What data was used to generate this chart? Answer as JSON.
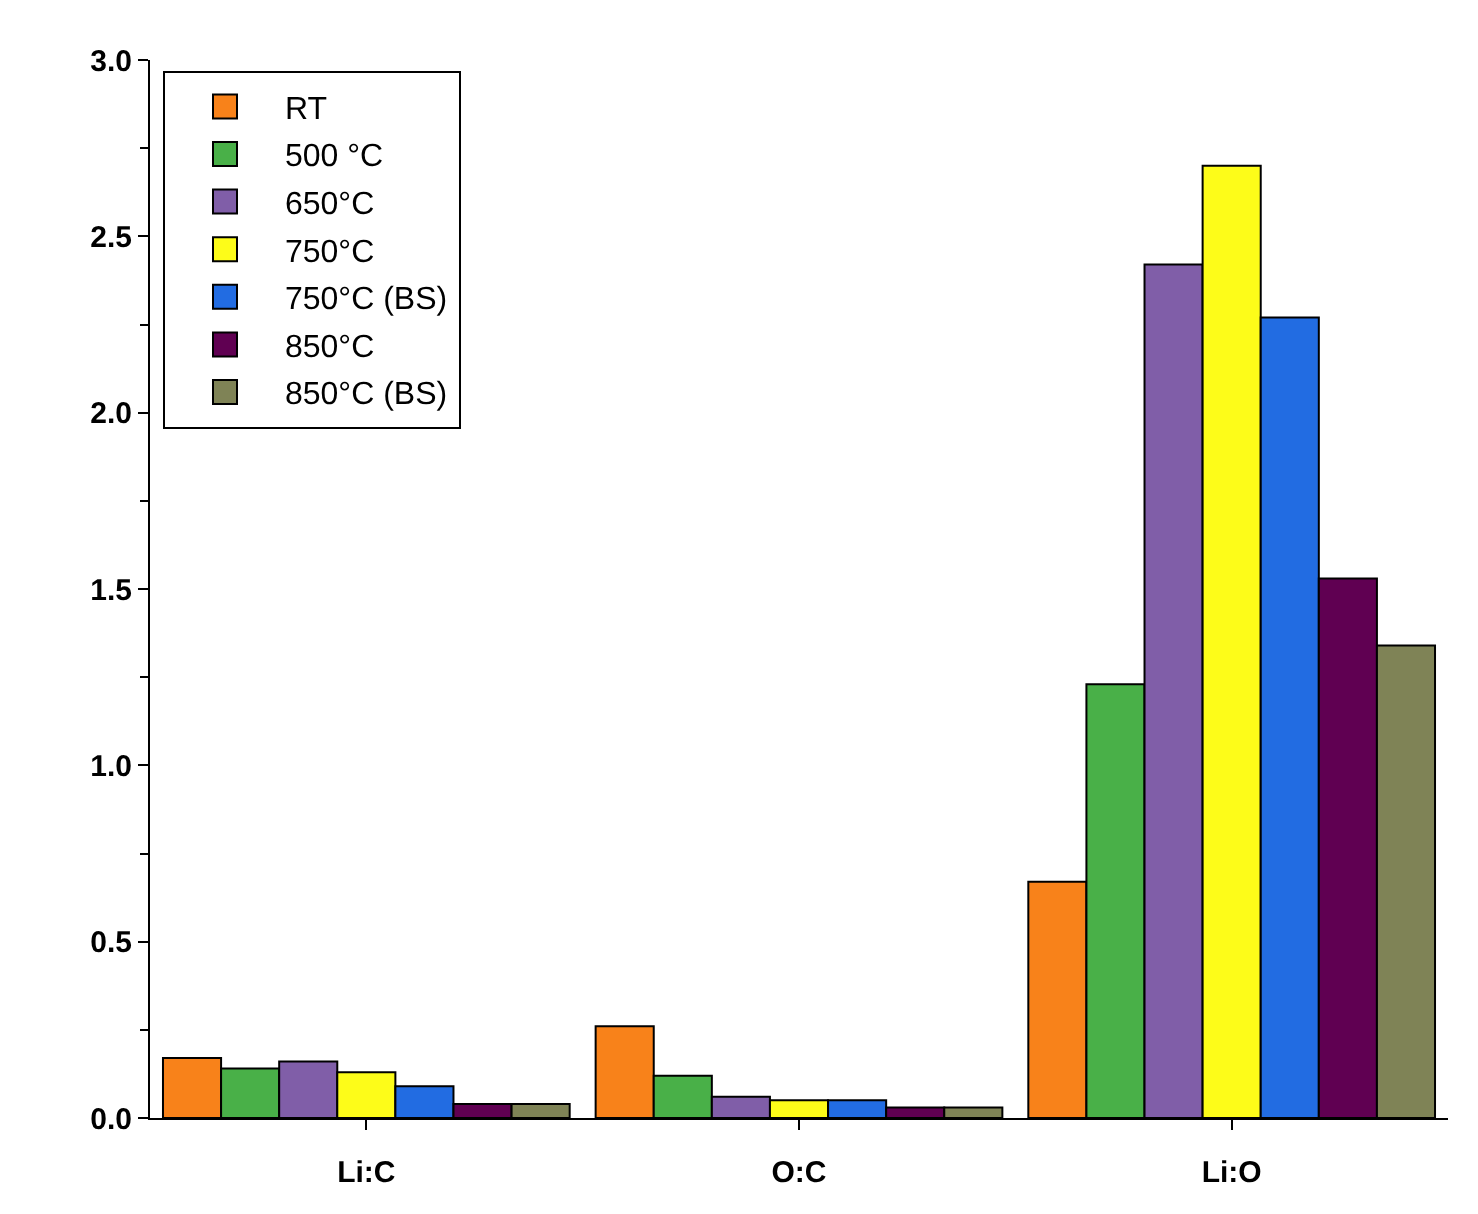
{
  "chart_data": {
    "type": "bar",
    "categories": [
      "Li:C",
      "O:C",
      "Li:O"
    ],
    "series": [
      {
        "name": "RT",
        "color": "#f8821a",
        "values": [
          0.17,
          0.26,
          0.67
        ]
      },
      {
        "name": "500 °C",
        "color": "#49b048",
        "values": [
          0.14,
          0.12,
          1.23
        ]
      },
      {
        "name": "650°C",
        "color": "#805ea8",
        "values": [
          0.16,
          0.06,
          2.42
        ]
      },
      {
        "name": "750°C",
        "color": "#fdfc19",
        "values": [
          0.13,
          0.05,
          2.7
        ]
      },
      {
        "name": "750°C (BS)",
        "color": "#226ce2",
        "values": [
          0.09,
          0.05,
          2.27
        ]
      },
      {
        "name": "850°C",
        "color": "#600052",
        "values": [
          0.04,
          0.03,
          1.53
        ]
      },
      {
        "name": "850°C (BS)",
        "color": "#7f8356",
        "values": [
          0.04,
          0.03,
          1.34
        ]
      }
    ],
    "ylim": [
      0,
      3.0
    ],
    "yticks": [
      {
        "value": 0,
        "label": "0.0"
      },
      {
        "value": 0.5,
        "label": "0.5"
      },
      {
        "value": 1.0,
        "label": "1.0"
      },
      {
        "value": 1.5,
        "label": "1.5"
      },
      {
        "value": 2.0,
        "label": "2.0"
      },
      {
        "value": 2.5,
        "label": "2.5"
      },
      {
        "value": 3.0,
        "label": "3.0"
      }
    ],
    "legend": "top left"
  }
}
